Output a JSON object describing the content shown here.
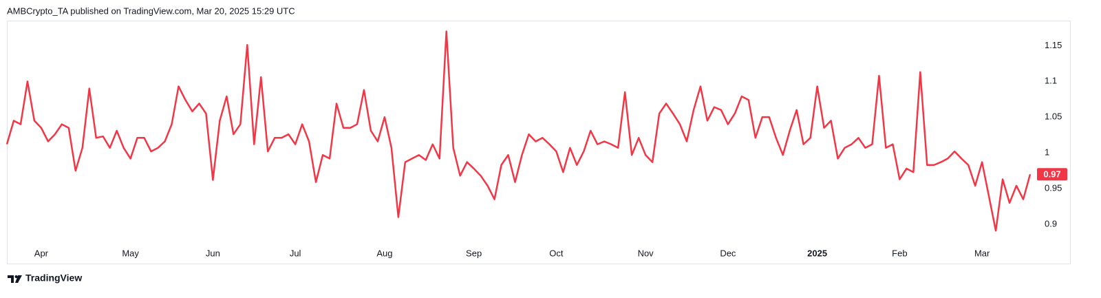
{
  "chart_data": {
    "type": "line",
    "title": "AMBCrypto_TA published on TradingView.com, Mar 20, 2025 15:29 UTC",
    "source": "TradingView",
    "categories": [
      null,
      null,
      null,
      null,
      null,
      "Apr",
      null,
      null,
      null,
      null,
      null,
      null,
      null,
      null,
      null,
      null,
      null,
      null,
      "May",
      null,
      null,
      null,
      null,
      null,
      null,
      null,
      null,
      null,
      null,
      null,
      "Jun",
      null,
      null,
      null,
      null,
      null,
      null,
      null,
      null,
      null,
      null,
      null,
      "Jul",
      null,
      null,
      null,
      null,
      null,
      null,
      null,
      null,
      null,
      null,
      null,
      null,
      "Aug",
      null,
      null,
      null,
      null,
      null,
      null,
      null,
      null,
      null,
      null,
      null,
      null,
      "Sep",
      null,
      null,
      null,
      null,
      null,
      null,
      null,
      null,
      null,
      null,
      null,
      "Oct",
      null,
      null,
      null,
      null,
      null,
      null,
      null,
      null,
      null,
      null,
      null,
      null,
      "Nov",
      null,
      null,
      null,
      null,
      null,
      null,
      null,
      null,
      null,
      null,
      null,
      "Dec",
      null,
      null,
      null,
      null,
      null,
      null,
      null,
      null,
      null,
      null,
      null,
      null,
      "2025",
      null,
      null,
      null,
      null,
      null,
      null,
      null,
      null,
      null,
      null,
      null,
      "Feb",
      null,
      null,
      null,
      null,
      null,
      null,
      null,
      null,
      null,
      null,
      null,
      "Mar",
      null,
      null,
      null,
      null,
      null,
      null,
      null
    ],
    "values": [
      1.012,
      1.045,
      1.04,
      1.1,
      1.045,
      1.035,
      1.016,
      1.026,
      1.04,
      1.035,
      0.975,
      1.007,
      1.09,
      1.021,
      1.023,
      1.007,
      1.031,
      1.007,
      0.992,
      1.021,
      1.021,
      1.002,
      1.007,
      1.016,
      1.04,
      1.093,
      1.074,
      1.058,
      1.069,
      1.055,
      0.962,
      1.045,
      1.079,
      1.026,
      1.04,
      1.151,
      1.012,
      1.106,
      1.002,
      1.021,
      1.021,
      1.026,
      1.012,
      1.04,
      1.016,
      0.959,
      0.997,
      0.992,
      1.069,
      1.035,
      1.035,
      1.04,
      1.088,
      1.031,
      1.016,
      1.05,
      1.007,
      0.91,
      0.987,
      0.992,
      0.997,
      0.99,
      1.012,
      0.992,
      1.17,
      1.007,
      0.968,
      0.987,
      0.978,
      0.968,
      0.954,
      0.935,
      0.983,
      0.997,
      0.959,
      0.997,
      1.026,
      1.016,
      1.021,
      1.012,
      1.002,
      0.973,
      1.007,
      0.983,
      1.002,
      1.031,
      1.012,
      1.016,
      1.012,
      1.007,
      1.085,
      0.997,
      1.021,
      0.997,
      0.987,
      1.055,
      1.069,
      1.055,
      1.04,
      1.016,
      1.06,
      1.093,
      1.045,
      1.064,
      1.06,
      1.04,
      1.055,
      1.079,
      1.074,
      1.021,
      1.05,
      1.05,
      1.021,
      0.997,
      1.031,
      1.06,
      1.012,
      1.021,
      1.093,
      1.035,
      1.045,
      0.992,
      1.007,
      1.012,
      1.021,
      1.007,
      1.012,
      1.108,
      1.007,
      1.012,
      0.963,
      0.978,
      0.973,
      1.113,
      0.983,
      0.983,
      0.987,
      0.992,
      1.002,
      0.992,
      0.983,
      0.954,
      0.987,
      0.939,
      0.891,
      0.963,
      0.93,
      0.954,
      0.935,
      0.97
    ],
    "color": "#f23645",
    "ylim": [
      0.872,
      1.185
    ],
    "yticks": [
      0.9,
      0.95,
      1,
      1.05,
      1.1,
      1.15
    ],
    "grid": false
  }
}
